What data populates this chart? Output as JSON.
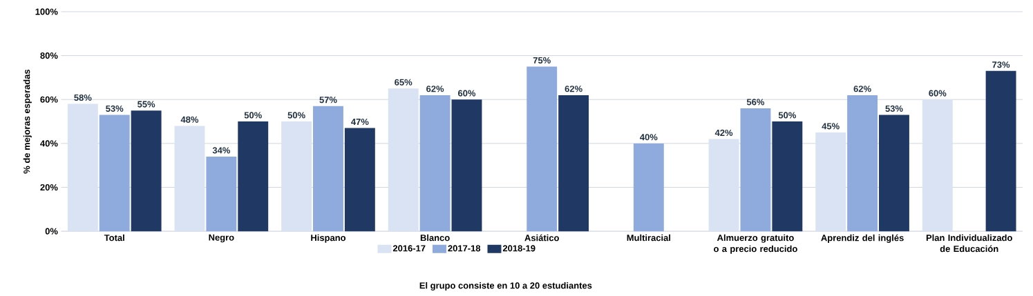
{
  "chart_data": {
    "type": "bar",
    "ylabel": "% de mejoras esperadas",
    "categories": [
      "Total",
      "Negro",
      "Hispano",
      "Blanco",
      "Asiático",
      "Multiracial",
      "Almuerzo gratuito o a precio reducido",
      "Aprendiz del inglés",
      "Plan Individualizado de Educación"
    ],
    "series": [
      {
        "name": "2016-17",
        "color": "#dae3f3",
        "values": [
          58,
          48,
          50,
          65,
          null,
          null,
          42,
          45,
          60
        ],
        "value_labels": [
          "58%",
          "48%",
          "50%",
          "65%",
          null,
          null,
          "42%",
          "45%",
          "60%"
        ]
      },
      {
        "name": "2017-18",
        "color": "#8faadc",
        "values": [
          53,
          34,
          57,
          62,
          75,
          40,
          56,
          62,
          null
        ],
        "value_labels": [
          "53%",
          "34%",
          "57%",
          "62%",
          "75%",
          "40%",
          "56%",
          "62%",
          null
        ]
      },
      {
        "name": "2018-19",
        "color": "#203864",
        "values": [
          55,
          50,
          47,
          60,
          62,
          null,
          50,
          53,
          73
        ],
        "value_labels": [
          "55%",
          "50%",
          "47%",
          "60%",
          "62%",
          null,
          "50%",
          "53%",
          "73%"
        ]
      }
    ],
    "ylim": [
      0,
      100
    ],
    "yticks": [
      {
        "value": 0,
        "label": "0%"
      },
      {
        "value": 20,
        "label": "20%"
      },
      {
        "value": 40,
        "label": "40%"
      },
      {
        "value": 60,
        "label": "60%"
      },
      {
        "value": 80,
        "label": "80%"
      },
      {
        "value": 100,
        "label": "100%"
      }
    ],
    "grid": "y",
    "legend": "bottom",
    "annotations": [
      "El grupo consiste en 10 a 20 estudiantes"
    ]
  }
}
